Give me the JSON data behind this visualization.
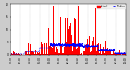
{
  "bg_color": "#cccccc",
  "plot_bg_color": "#ffffff",
  "n_points": 1440,
  "seed": 42,
  "legend_actual_color": "#ff0000",
  "legend_median_color": "#0000ff",
  "legend_actual_label": "Actual",
  "legend_median_label": "Median",
  "grid_color": "#999999",
  "ylim": [
    0,
    20
  ],
  "yticks": [
    0,
    5,
    10,
    15,
    20
  ],
  "ytick_labels": [
    "0",
    "5",
    "10",
    "15",
    "20"
  ]
}
